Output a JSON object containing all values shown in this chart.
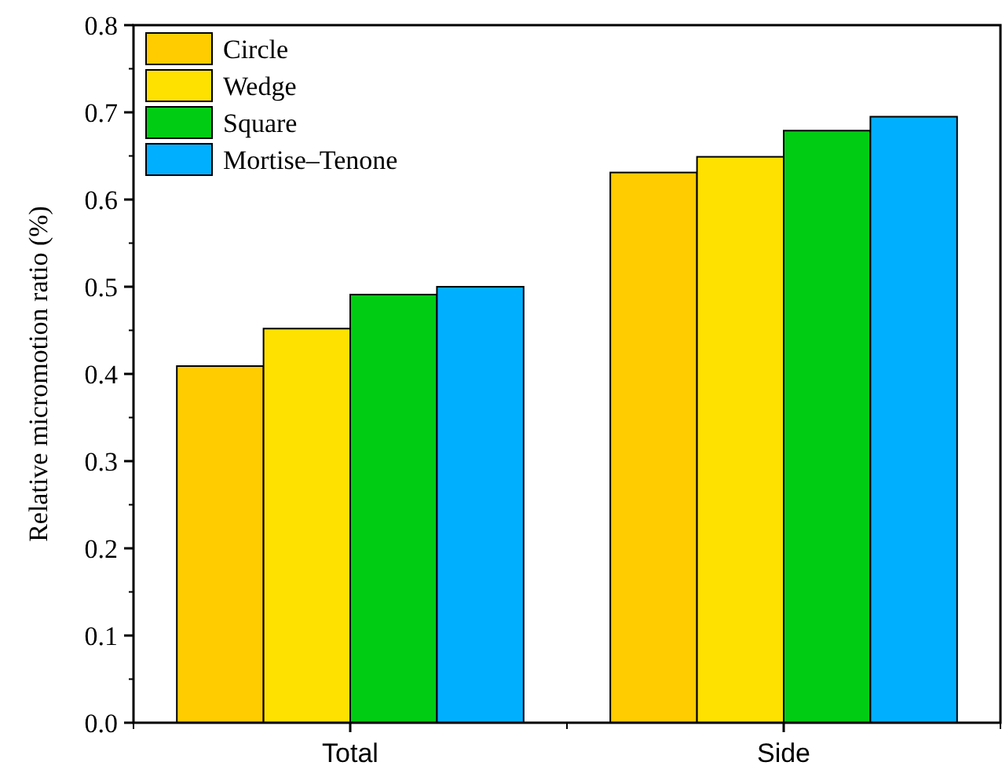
{
  "chart_data": {
    "type": "bar",
    "ylabel": "Relative micromotion ratio (%)",
    "categories": [
      "Total",
      "Side"
    ],
    "series": [
      {
        "name": "Circle",
        "color": "#ffcc00",
        "values": [
          0.409,
          0.631
        ]
      },
      {
        "name": "Wedge",
        "color": "#ffe100",
        "values": [
          0.452,
          0.649
        ]
      },
      {
        "name": "Square",
        "color": "#00cc14",
        "values": [
          0.491,
          0.679
        ]
      },
      {
        "name": "Mortise–Tenone",
        "color": "#00b0ff",
        "values": [
          0.5,
          0.695
        ]
      }
    ],
    "ylim": [
      0,
      0.8
    ],
    "yticks": [
      {
        "value": 0,
        "label": "0.0"
      },
      0.1,
      0.2,
      0.3,
      0.4,
      0.5,
      0.6,
      0.7,
      0.8
    ],
    "grid": false,
    "legend": "top left"
  }
}
